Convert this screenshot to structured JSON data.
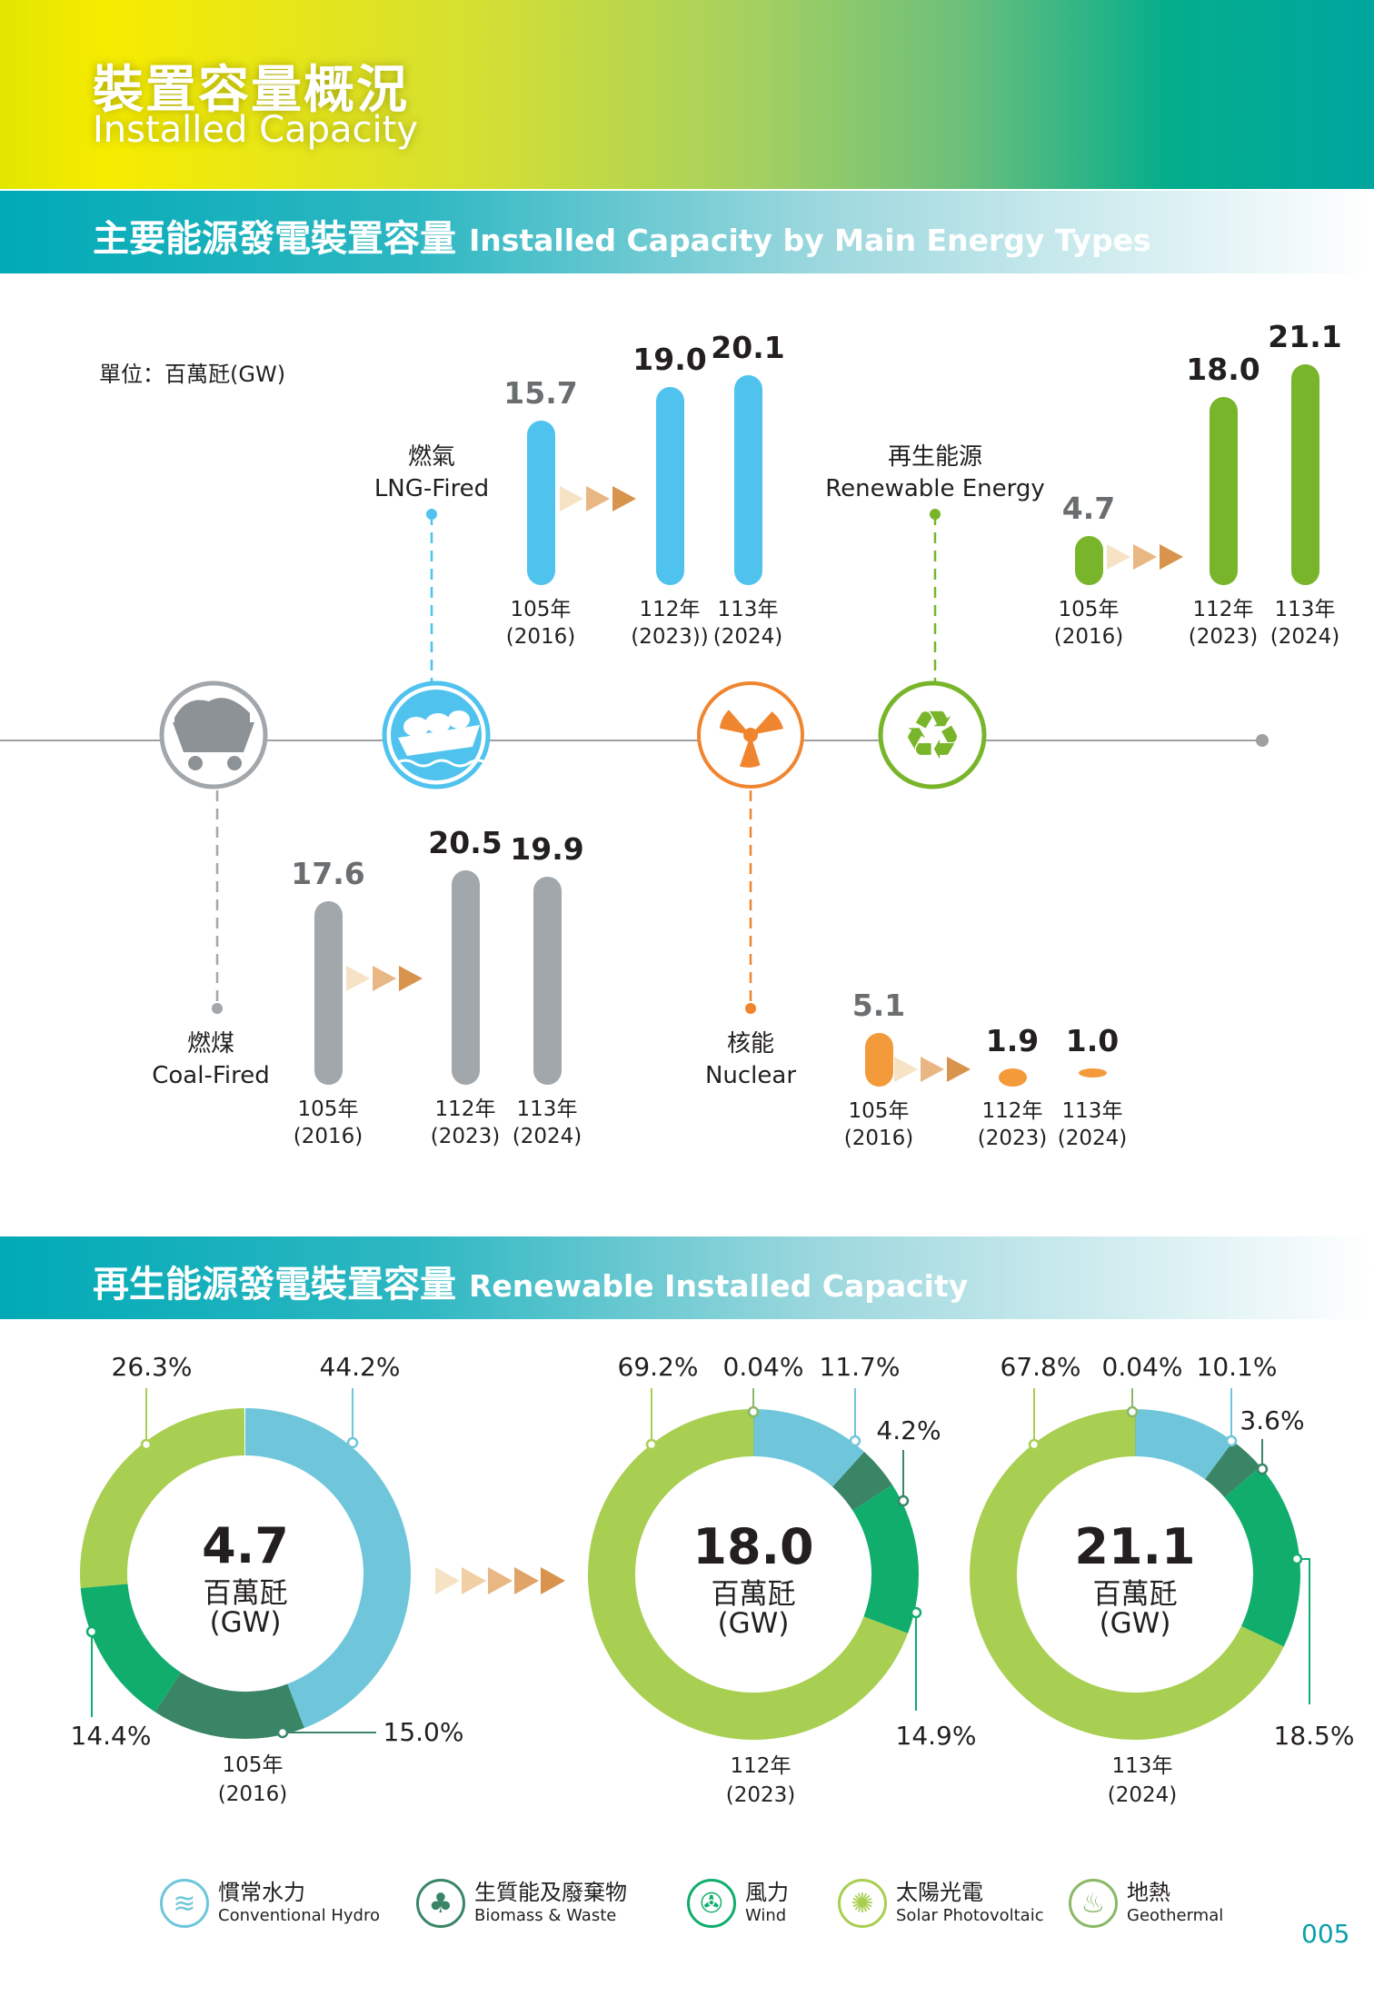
{
  "header": {
    "title_zh": "裝置容量概況",
    "title_en": "Installed Capacity"
  },
  "section1": {
    "title_zh": "主要能源發電裝置容量",
    "title_en": "Installed Capacity by Main Energy Types",
    "unit": "單位：百萬瓩(GW)"
  },
  "energy_types": [
    {
      "key": "lng",
      "name_zh": "燃氣",
      "name_en": "LNG-Fired",
      "color": "#4fc3ee",
      "icon": "lng-ship-icon",
      "values": [
        {
          "year": "105年",
          "ad": "(2016)",
          "value": 15.7
        },
        {
          "year": "112年",
          "ad": "(2023))",
          "value": 19.0
        },
        {
          "year": "113年",
          "ad": "(2024)",
          "value": 20.1
        }
      ]
    },
    {
      "key": "renewable",
      "name_zh": "再生能源",
      "name_en": "Renewable Energy",
      "color": "#78b52a",
      "icon": "recycle-leaf-icon",
      "values": [
        {
          "year": "105年",
          "ad": "(2016)",
          "value": 4.7
        },
        {
          "year": "112年",
          "ad": "(2023)",
          "value": 18.0
        },
        {
          "year": "113年",
          "ad": "(2024)",
          "value": 21.1
        }
      ]
    },
    {
      "key": "coal",
      "name_zh": "燃煤",
      "name_en": "Coal-Fired",
      "color": "#a2a7ac",
      "icon": "coal-cart-icon",
      "values": [
        {
          "year": "105年",
          "ad": "(2016)",
          "value": 17.6
        },
        {
          "year": "112年",
          "ad": "(2023)",
          "value": 20.5
        },
        {
          "year": "113年",
          "ad": "(2024)",
          "value": 19.9
        }
      ]
    },
    {
      "key": "nuclear",
      "name_zh": "核能",
      "name_en": "Nuclear",
      "color": "#f39a3a",
      "icon": "radiation-icon",
      "values": [
        {
          "year": "105年",
          "ad": "(2016)",
          "value": 5.1
        },
        {
          "year": "112年",
          "ad": "(2023)",
          "value": 1.9
        },
        {
          "year": "113年",
          "ad": "(2024)",
          "value": 1.0
        }
      ]
    }
  ],
  "section2": {
    "title_zh": "再生能源發電裝置容量",
    "title_en": "Renewable Installed Capacity"
  },
  "donuts": [
    {
      "total": "4.7",
      "unit_zh": "百萬瓩",
      "unit_en": "(GW)",
      "year": "105年",
      "ad": "(2016)",
      "shares": {
        "hydro": 44.2,
        "biomass": 15.0,
        "wind": 14.4,
        "solar": 26.3
      },
      "labels": {
        "hydro": "44.2%",
        "biomass": "15.0%",
        "wind": "14.4%",
        "solar": "26.3%"
      }
    },
    {
      "total": "18.0",
      "unit_zh": "百萬瓩",
      "unit_en": "(GW)",
      "year": "112年",
      "ad": "(2023)",
      "shares": {
        "hydro": 11.7,
        "biomass": 4.2,
        "wind": 14.9,
        "solar": 69.2,
        "geothermal": 0.04
      },
      "labels": {
        "hydro": "11.7%",
        "biomass": "4.2%",
        "wind": "14.9%",
        "solar": "69.2%",
        "geothermal": "0.04%"
      }
    },
    {
      "total": "21.1",
      "unit_zh": "百萬瓩",
      "unit_en": "(GW)",
      "year": "113年",
      "ad": "(2024)",
      "shares": {
        "hydro": 10.1,
        "biomass": 3.6,
        "wind": 18.5,
        "solar": 67.8,
        "geothermal": 0.04
      },
      "labels": {
        "hydro": "10.1%",
        "biomass": "3.6%",
        "wind": "18.5%",
        "solar": "67.8%",
        "geothermal": "0.04%"
      }
    }
  ],
  "legend": [
    {
      "key": "hydro",
      "zh": "慣常水力",
      "en": "Conventional Hydro",
      "color": "#6fc6da",
      "icon": "hydro-dam-icon"
    },
    {
      "key": "biomass",
      "zh": "生質能及廢棄物",
      "en": "Biomass & Waste",
      "color": "#3a8566",
      "icon": "biomass-bag-icon"
    },
    {
      "key": "wind",
      "zh": "風力",
      "en": "Wind",
      "color": "#10ad6d",
      "icon": "wind-turbine-icon"
    },
    {
      "key": "solar",
      "zh": "太陽光電",
      "en": "Solar Photovoltaic",
      "color": "#a8cf52",
      "icon": "solar-sun-icon"
    },
    {
      "key": "geothermal",
      "zh": "地熱",
      "en": "Geothermal",
      "color": "#8ab866",
      "icon": "geothermal-icon"
    }
  ],
  "page_number": "005",
  "arrow_colors": [
    "#f6e3c6",
    "#f0cfa5",
    "#e8b783",
    "#e0a468",
    "#d8944d"
  ]
}
